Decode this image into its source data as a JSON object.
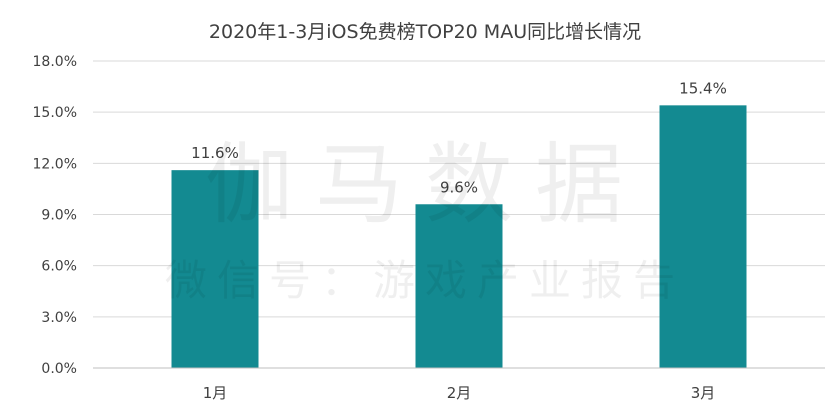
{
  "chart_data": {
    "type": "bar",
    "title": "2020年1-3月iOS免费榜TOP20 MAU同比增长情况",
    "categories": [
      "1月",
      "2月",
      "3月"
    ],
    "values": [
      11.6,
      9.6,
      15.4
    ],
    "data_labels": [
      "11.6%",
      "9.6%",
      "15.4%"
    ],
    "y_ticks": [
      "0.0%",
      "3.0%",
      "6.0%",
      "9.0%",
      "12.0%",
      "15.0%",
      "18.0%"
    ],
    "ylim": [
      0,
      18
    ],
    "grid": true,
    "bar_color": "#138a91"
  },
  "watermark": {
    "line1": "伽马数据",
    "line2": "微信号：游戏产业报告"
  }
}
